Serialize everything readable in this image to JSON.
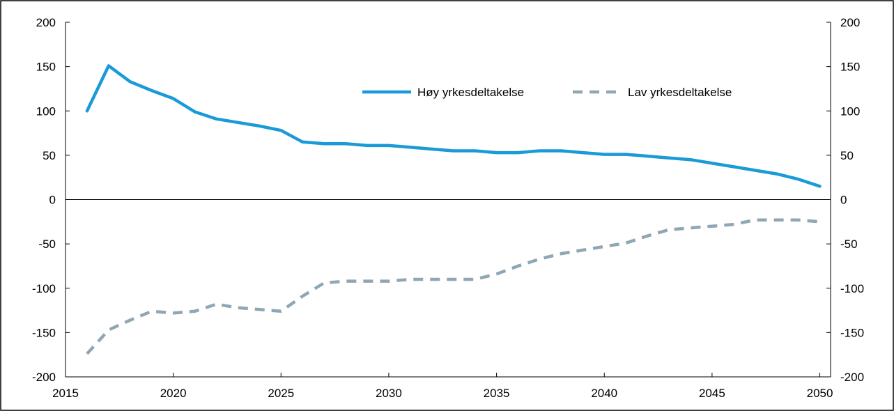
{
  "chart_data": {
    "type": "line",
    "title": "",
    "xlabel": "",
    "ylabel": "",
    "xlim": [
      2015,
      2050.5
    ],
    "ylim": [
      -200,
      200
    ],
    "xticks": [
      2015,
      2020,
      2025,
      2030,
      2035,
      2040,
      2045,
      2050
    ],
    "yticks": [
      -200,
      -150,
      -100,
      -50,
      0,
      50,
      100,
      150,
      200
    ],
    "grid": false,
    "legend_position": "top-right",
    "x": [
      2016,
      2017,
      2018,
      2019,
      2020,
      2021,
      2022,
      2023,
      2024,
      2025,
      2026,
      2027,
      2028,
      2029,
      2030,
      2031,
      2032,
      2033,
      2034,
      2035,
      2036,
      2037,
      2038,
      2039,
      2040,
      2041,
      2042,
      2043,
      2044,
      2045,
      2046,
      2047,
      2048,
      2049,
      2050
    ],
    "series": [
      {
        "name": "Høy yrkesdeltakelse",
        "color": "#1a9bd7",
        "style": "solid",
        "values": [
          100,
          151,
          133,
          123,
          114,
          99,
          91,
          87,
          83,
          78,
          65,
          63,
          63,
          61,
          61,
          59,
          57,
          55,
          55,
          53,
          53,
          55,
          55,
          53,
          51,
          51,
          49,
          47,
          45,
          41,
          37,
          33,
          29,
          23,
          15
        ]
      },
      {
        "name": "Lav yrkesdeltakelse",
        "color": "#8fa7b5",
        "style": "dashed",
        "values": [
          -174,
          -147,
          -136,
          -126,
          -128,
          -126,
          -118,
          -122,
          -124,
          -126,
          -109,
          -94,
          -92,
          -92,
          -92,
          -90,
          -90,
          -90,
          -90,
          -84,
          -75,
          -67,
          -61,
          -57,
          -53,
          -49,
          -41,
          -34,
          -32,
          -30,
          -28,
          -23,
          -23,
          -23,
          -25
        ]
      }
    ]
  }
}
